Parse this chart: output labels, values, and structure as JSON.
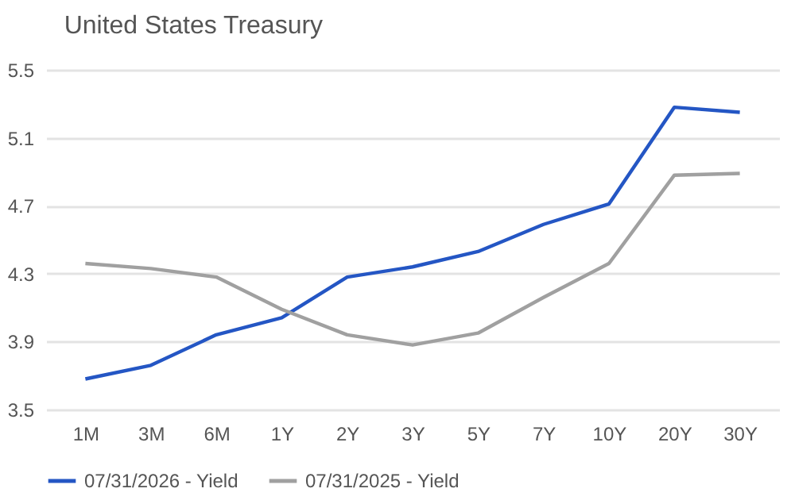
{
  "chart_data": {
    "type": "line",
    "title": "United States Treasury",
    "categories": [
      "1M",
      "3M",
      "6M",
      "1Y",
      "2Y",
      "3Y",
      "5Y",
      "7Y",
      "10Y",
      "20Y",
      "30Y"
    ],
    "series": [
      {
        "name": "07/31/2026 - Yield",
        "color": "#2456c4",
        "values": [
          3.68,
          3.76,
          3.94,
          4.04,
          4.28,
          4.34,
          4.43,
          4.59,
          4.71,
          5.28,
          5.25
        ]
      },
      {
        "name": "07/31/2025 - Yield",
        "color": "#a0a0a0",
        "values": [
          4.36,
          4.33,
          4.28,
          4.09,
          3.94,
          3.88,
          3.95,
          4.16,
          4.36,
          4.88,
          4.89
        ]
      }
    ],
    "ylim": [
      3.5,
      5.5
    ],
    "yticks": [
      3.5,
      3.9,
      4.3,
      4.7,
      5.1,
      5.5
    ],
    "grid": "y",
    "legend": "bottom",
    "marker": "none",
    "line_style": "solid"
  }
}
